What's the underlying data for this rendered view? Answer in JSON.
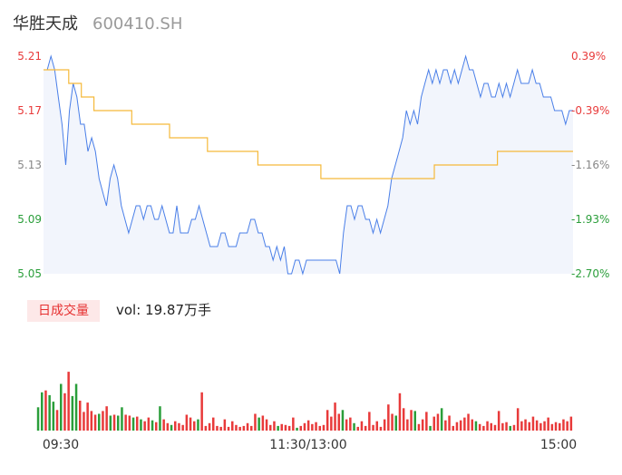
{
  "header": {
    "name": "华胜天成",
    "code": "600410.SH"
  },
  "volume": {
    "tag": "日成交量",
    "label": "vol: 19.87万手"
  },
  "colors": {
    "up": "#e83a3a",
    "down": "#2a9e3a",
    "price_line": "#4a7fe8",
    "avg_line": "#f5b93a",
    "area": "#f2f5fc"
  },
  "chart_data": {
    "type": "line",
    "price_axis": {
      "min": 5.05,
      "max": 5.21,
      "ticks": [
        "5.21",
        "5.17",
        "5.13",
        "5.09",
        "5.05"
      ]
    },
    "pct_axis": {
      "ticks": [
        "0.39%",
        "-0.39%",
        "-1.16%",
        "-1.93%",
        "-2.70%"
      ]
    },
    "time_labels": [
      "09:30",
      "11:30/13:00",
      "15:00"
    ],
    "series": [
      {
        "values": [
          5.2,
          5.2,
          5.21,
          5.2,
          5.18,
          5.16,
          5.13,
          5.17,
          5.19,
          5.18,
          5.16,
          5.16,
          5.14,
          5.15,
          5.14,
          5.12,
          5.11,
          5.1,
          5.12,
          5.13,
          5.12,
          5.1,
          5.09,
          5.08,
          5.09,
          5.1,
          5.1,
          5.09,
          5.1,
          5.1,
          5.09,
          5.09,
          5.1,
          5.09,
          5.08,
          5.08,
          5.1,
          5.08,
          5.08,
          5.08,
          5.09,
          5.09,
          5.1,
          5.09,
          5.08,
          5.07,
          5.07,
          5.07,
          5.08,
          5.08,
          5.07,
          5.07,
          5.07,
          5.08,
          5.08,
          5.08,
          5.09,
          5.09,
          5.08,
          5.08,
          5.07,
          5.07,
          5.06,
          5.07,
          5.06,
          5.07,
          5.05,
          5.05,
          5.06,
          5.06,
          5.05,
          5.06,
          5.06,
          5.06,
          5.06,
          5.06,
          5.06,
          5.06,
          5.06,
          5.06,
          5.05,
          5.08,
          5.1,
          5.1,
          5.09,
          5.1,
          5.1,
          5.09,
          5.09,
          5.08,
          5.09,
          5.08,
          5.09,
          5.1,
          5.12,
          5.13,
          5.14,
          5.15,
          5.17,
          5.16,
          5.17,
          5.16,
          5.18,
          5.19,
          5.2,
          5.19,
          5.2,
          5.19,
          5.2,
          5.2,
          5.19,
          5.2,
          5.19,
          5.2,
          5.21,
          5.2,
          5.2,
          5.19,
          5.18,
          5.19,
          5.19,
          5.18,
          5.18,
          5.19,
          5.18,
          5.19,
          5.18,
          5.19,
          5.2,
          5.19,
          5.19,
          5.19,
          5.2,
          5.19,
          5.19,
          5.18,
          5.18,
          5.18,
          5.17,
          5.17,
          5.17,
          5.16,
          5.17,
          5.17
        ]
      },
      {
        "values": [
          5.2,
          5.2,
          5.19,
          5.18,
          5.17,
          5.17,
          5.17,
          5.16,
          5.16,
          5.16,
          5.15,
          5.15,
          5.15,
          5.14,
          5.14,
          5.14,
          5.14,
          5.13,
          5.13,
          5.13,
          5.13,
          5.13,
          5.12,
          5.12,
          5.12,
          5.12,
          5.12,
          5.12,
          5.12,
          5.12,
          5.12,
          5.13,
          5.13,
          5.13,
          5.13,
          5.13,
          5.14,
          5.14,
          5.14,
          5.14,
          5.14,
          5.14
        ]
      }
    ],
    "volume_bars": [
      [
        0.25,
        "d"
      ],
      [
        0.41,
        "d"
      ],
      [
        0.43,
        "r"
      ],
      [
        0.38,
        "d"
      ],
      [
        0.31,
        "d"
      ],
      [
        0.22,
        "r"
      ],
      [
        0.5,
        "d"
      ],
      [
        0.4,
        "r"
      ],
      [
        0.63,
        "r"
      ],
      [
        0.37,
        "d"
      ],
      [
        0.5,
        "d"
      ],
      [
        0.32,
        "r"
      ],
      [
        0.2,
        "r"
      ],
      [
        0.3,
        "r"
      ],
      [
        0.21,
        "r"
      ],
      [
        0.17,
        "r"
      ],
      [
        0.18,
        "d"
      ],
      [
        0.21,
        "r"
      ],
      [
        0.26,
        "r"
      ],
      [
        0.16,
        "d"
      ],
      [
        0.17,
        "r"
      ],
      [
        0.16,
        "d"
      ],
      [
        0.25,
        "d"
      ],
      [
        0.17,
        "r"
      ],
      [
        0.16,
        "r"
      ],
      [
        0.14,
        "d"
      ],
      [
        0.15,
        "r"
      ],
      [
        0.12,
        "d"
      ],
      [
        0.1,
        "r"
      ],
      [
        0.14,
        "r"
      ],
      [
        0.11,
        "d"
      ],
      [
        0.09,
        "r"
      ],
      [
        0.26,
        "d"
      ],
      [
        0.12,
        "r"
      ],
      [
        0.08,
        "r"
      ],
      [
        0.06,
        "d"
      ],
      [
        0.1,
        "r"
      ],
      [
        0.08,
        "r"
      ],
      [
        0.06,
        "r"
      ],
      [
        0.17,
        "r"
      ],
      [
        0.14,
        "r"
      ],
      [
        0.1,
        "r"
      ],
      [
        0.12,
        "d"
      ],
      [
        0.41,
        "r"
      ],
      [
        0.05,
        "r"
      ],
      [
        0.08,
        "r"
      ],
      [
        0.14,
        "r"
      ],
      [
        0.05,
        "r"
      ],
      [
        0.04,
        "r"
      ],
      [
        0.12,
        "r"
      ],
      [
        0.04,
        "r"
      ],
      [
        0.1,
        "r"
      ],
      [
        0.06,
        "r"
      ],
      [
        0.04,
        "r"
      ],
      [
        0.05,
        "r"
      ],
      [
        0.08,
        "r"
      ],
      [
        0.05,
        "r"
      ],
      [
        0.18,
        "r"
      ],
      [
        0.14,
        "d"
      ],
      [
        0.16,
        "r"
      ],
      [
        0.12,
        "r"
      ],
      [
        0.06,
        "r"
      ],
      [
        0.1,
        "r"
      ],
      [
        0.05,
        "d"
      ],
      [
        0.07,
        "r"
      ],
      [
        0.06,
        "r"
      ],
      [
        0.05,
        "r"
      ],
      [
        0.14,
        "r"
      ],
      [
        0.03,
        "d"
      ],
      [
        0.05,
        "r"
      ],
      [
        0.08,
        "r"
      ],
      [
        0.11,
        "r"
      ],
      [
        0.07,
        "r"
      ],
      [
        0.09,
        "r"
      ],
      [
        0.05,
        "r"
      ],
      [
        0.06,
        "r"
      ],
      [
        0.22,
        "r"
      ],
      [
        0.15,
        "r"
      ],
      [
        0.3,
        "r"
      ],
      [
        0.18,
        "r"
      ],
      [
        0.22,
        "d"
      ],
      [
        0.12,
        "r"
      ],
      [
        0.14,
        "r"
      ],
      [
        0.08,
        "d"
      ],
      [
        0.04,
        "r"
      ],
      [
        0.1,
        "r"
      ],
      [
        0.05,
        "r"
      ],
      [
        0.2,
        "r"
      ],
      [
        0.06,
        "r"
      ],
      [
        0.1,
        "r"
      ],
      [
        0.04,
        "r"
      ],
      [
        0.12,
        "r"
      ],
      [
        0.28,
        "r"
      ],
      [
        0.18,
        "r"
      ],
      [
        0.16,
        "d"
      ],
      [
        0.4,
        "r"
      ],
      [
        0.24,
        "r"
      ],
      [
        0.12,
        "r"
      ],
      [
        0.22,
        "r"
      ],
      [
        0.21,
        "d"
      ],
      [
        0.07,
        "r"
      ],
      [
        0.12,
        "r"
      ],
      [
        0.2,
        "r"
      ],
      [
        0.05,
        "d"
      ],
      [
        0.15,
        "r"
      ],
      [
        0.18,
        "r"
      ],
      [
        0.24,
        "d"
      ],
      [
        0.11,
        "r"
      ],
      [
        0.16,
        "r"
      ],
      [
        0.05,
        "r"
      ],
      [
        0.09,
        "r"
      ],
      [
        0.11,
        "r"
      ],
      [
        0.14,
        "r"
      ],
      [
        0.18,
        "r"
      ],
      [
        0.12,
        "r"
      ],
      [
        0.1,
        "d"
      ],
      [
        0.07,
        "r"
      ],
      [
        0.05,
        "r"
      ],
      [
        0.1,
        "r"
      ],
      [
        0.08,
        "r"
      ],
      [
        0.06,
        "r"
      ],
      [
        0.21,
        "r"
      ],
      [
        0.08,
        "r"
      ],
      [
        0.09,
        "r"
      ],
      [
        0.05,
        "d"
      ],
      [
        0.06,
        "r"
      ],
      [
        0.24,
        "r"
      ],
      [
        0.1,
        "r"
      ],
      [
        0.12,
        "r"
      ],
      [
        0.09,
        "r"
      ],
      [
        0.15,
        "r"
      ],
      [
        0.11,
        "r"
      ],
      [
        0.08,
        "r"
      ],
      [
        0.1,
        "r"
      ],
      [
        0.14,
        "r"
      ],
      [
        0.07,
        "r"
      ],
      [
        0.09,
        "r"
      ],
      [
        0.08,
        "r"
      ],
      [
        0.12,
        "r"
      ],
      [
        0.1,
        "r"
      ],
      [
        0.15,
        "r"
      ]
    ]
  }
}
